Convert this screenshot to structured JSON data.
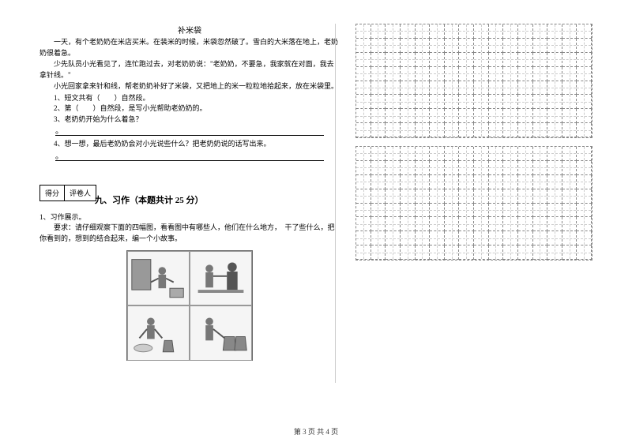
{
  "story": {
    "title": "补米袋",
    "p1": "一天，有个老奶奶在米店买米。在装米的时候，米袋忽然破了。雪白的大米落在地上，老奶奶很着急。",
    "p2": "少先队员小光看见了，连忙跑过去，对老奶奶说：\"老奶奶，不要急，我家就在对面，我去拿针线。\"",
    "p3": "小光回家拿来针和线，帮老奶奶补好了米袋，又把地上的米一粒粒地拾起来，放在米袋里。",
    "q1": "1、短文共有（　　）自然段。",
    "q2": "2、第（　　）自然段，是写小光帮助老奶奶的。",
    "q3": "3、老奶奶开始为什么着急？",
    "q4": "4、想一想，最后老奶奶会对小光说些什么？把老奶奶说的话写出来。"
  },
  "section": {
    "score_label": "得分",
    "grader_label": "评卷人",
    "title": "九、习作（本题共计 25 分）"
  },
  "writing": {
    "prompt_label": "1、习作展示。",
    "requirement": "要求：请仔细观察下面的四幅图，看看图中有哪些人，他们在什么地方，　干了些什么，把你看到的，想到的结合起来，编一个小故事。"
  },
  "footer": "第 3 页 共 4 页"
}
